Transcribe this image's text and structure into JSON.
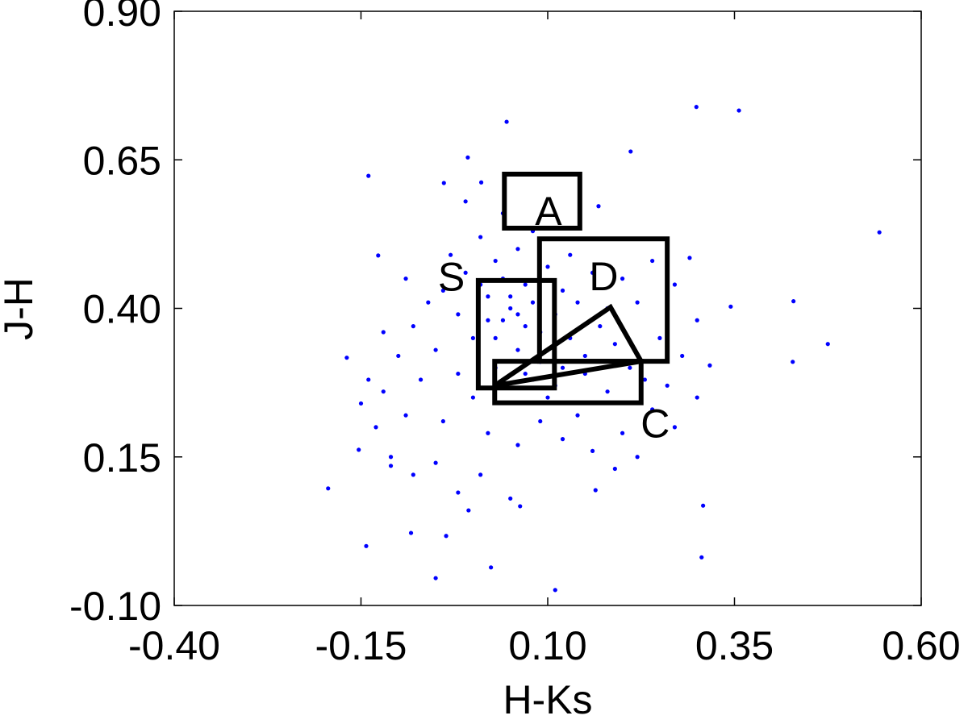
{
  "chart_data": {
    "type": "scatter",
    "x_label": "H-Ks",
    "y_label": "J-H",
    "xlim": [
      -0.4,
      0.6
    ],
    "ylim": [
      -0.1,
      0.9
    ],
    "xticks": [
      {
        "value": -0.4,
        "label": "-0.40"
      },
      {
        "value": -0.15,
        "label": "-0.15"
      },
      {
        "value": 0.1,
        "label": "0.10"
      },
      {
        "value": 0.35,
        "label": "0.35"
      },
      {
        "value": 0.6,
        "label": "0.60"
      }
    ],
    "yticks": [
      {
        "value": -0.1,
        "label": "-0.10"
      },
      {
        "value": 0.15,
        "label": "0.15"
      },
      {
        "value": 0.4,
        "label": "0.40"
      },
      {
        "value": 0.65,
        "label": "0.65"
      },
      {
        "value": 0.9,
        "label": "0.90"
      }
    ],
    "series": [
      {
        "color": "#0000ff",
        "x": [
          0.299,
          0.356,
          0.045,
          0.544,
          0.211,
          -0.007,
          -0.14,
          -0.127,
          0.429,
          0.475,
          0.428,
          -0.194,
          -0.143,
          -0.05,
          0.024,
          0.11,
          0.306,
          0.308,
          0.164,
          0.063,
          -0.169,
          -0.153,
          -0.11,
          -0.083,
          -0.036,
          -0.006,
          0.345,
          0.317,
          0.29,
          0.168,
          0.011,
          -0.039,
          0.02,
          0.05,
          0.07,
          0.04,
          0.09,
          0.11,
          0.13,
          0.06,
          0.03,
          0.08,
          0.12,
          0.15,
          0.17,
          0.19,
          0.21,
          0.23,
          0.1,
          0.14,
          0.18,
          0.0,
          -0.02,
          -0.04,
          -0.01,
          0.03,
          0.06,
          0.01,
          -0.03,
          -0.06,
          -0.08,
          -0.05,
          -0.02,
          0.0,
          -0.07,
          -0.1,
          -0.12,
          -0.09,
          -0.04,
          0.02,
          0.06,
          0.09,
          0.12,
          0.16,
          0.2,
          0.24,
          0.26,
          0.25,
          0.22,
          0.2,
          0.24,
          0.27,
          0.3,
          0.28,
          0.16,
          0.13,
          0.1,
          0.08,
          0.04,
          -0.01,
          0.14,
          0.18,
          0.07,
          0.05,
          0.03,
          0.08,
          0.1,
          0.12,
          0.01,
          0.04,
          0.06,
          0.09,
          -0.13,
          -0.15,
          -0.11,
          -0.08,
          -0.05,
          -0.02,
          0.01,
          0.05,
          0.19,
          0.22,
          0.27,
          0.3,
          -0.14,
          -0.12,
          -0.09,
          0.02,
          0.07,
          0.11,
          0.15,
          0.19
        ],
        "values": [
          0.739,
          0.733,
          0.714,
          0.528,
          0.664,
          0.654,
          0.623,
          0.489,
          0.412,
          0.34,
          0.31,
          0.097,
          0.0,
          -0.054,
          -0.036,
          -0.074,
          -0.019,
          0.068,
          0.094,
          0.067,
          0.317,
          0.162,
          0.135,
          0.022,
          0.017,
          0.06,
          0.403,
          0.304,
          0.485,
          0.572,
          0.612,
          0.611,
          0.42,
          0.4,
          0.44,
          0.38,
          0.36,
          0.39,
          0.35,
          0.33,
          0.3,
          0.28,
          0.3,
          0.32,
          0.37,
          0.34,
          0.3,
          0.28,
          0.25,
          0.22,
          0.26,
          0.35,
          0.39,
          0.43,
          0.46,
          0.48,
          0.5,
          0.52,
          0.49,
          0.41,
          0.37,
          0.33,
          0.29,
          0.25,
          0.28,
          0.32,
          0.26,
          0.22,
          0.21,
          0.19,
          0.17,
          0.21,
          0.18,
          0.16,
          0.19,
          0.23,
          0.27,
          0.35,
          0.41,
          0.45,
          0.48,
          0.44,
          0.38,
          0.32,
          0.46,
          0.49,
          0.47,
          0.53,
          0.56,
          0.58,
          0.41,
          0.4,
          0.37,
          0.42,
          0.35,
          0.41,
          0.33,
          0.43,
          0.44,
          0.45,
          0.39,
          0.31,
          0.2,
          0.24,
          0.15,
          0.12,
          0.14,
          0.09,
          0.12,
          0.08,
          0.13,
          0.15,
          0.2,
          0.25,
          0.28,
          0.36,
          0.45,
          0.38,
          0.29,
          0.27,
          0.29,
          0.31
        ]
      }
    ],
    "regions": [
      {
        "label": "A",
        "label_x": 0.101,
        "label_y": 0.565,
        "x": [
          0.042,
          0.143,
          0.143,
          0.042
        ],
        "y": [
          0.626,
          0.626,
          0.535,
          0.535
        ]
      },
      {
        "label": "D",
        "label_x": 0.175,
        "label_y": 0.455,
        "x": [
          0.089,
          0.26,
          0.26,
          0.089
        ],
        "y": [
          0.517,
          0.517,
          0.311,
          0.311
        ]
      },
      {
        "label": "S",
        "label_x": -0.029,
        "label_y": 0.454,
        "x": [
          0.007,
          0.109,
          0.109,
          0.007
        ],
        "y": [
          0.447,
          0.447,
          0.266,
          0.266
        ]
      },
      {
        "label": "C",
        "label_x": 0.244,
        "label_y": 0.207,
        "x": [
          0.029,
          0.225,
          0.225,
          0.029
        ],
        "y": [
          0.311,
          0.311,
          0.241,
          0.241
        ]
      },
      {
        "x": [
          0.029,
          0.184,
          0.225
        ],
        "y": [
          0.27,
          0.402,
          0.311
        ]
      }
    ]
  }
}
